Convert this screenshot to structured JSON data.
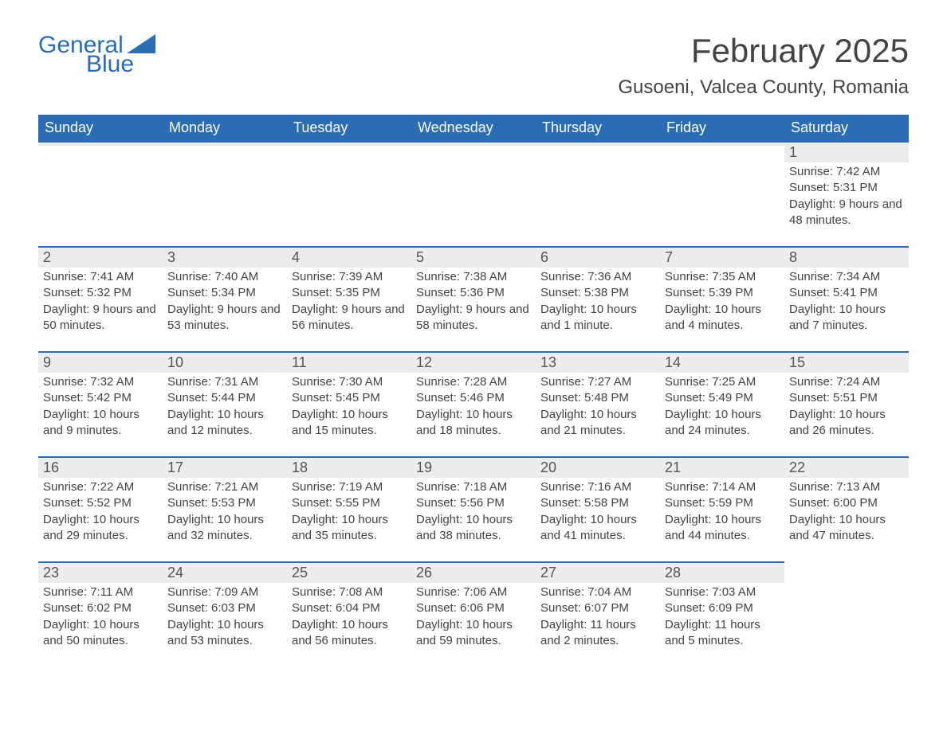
{
  "branding": {
    "logo_general": "General",
    "logo_blue": "Blue",
    "logo_triangle_color": "#2a6db5",
    "logo_text_color": "#2a6db5"
  },
  "header": {
    "month_title": "February 2025",
    "location": "Gusoeni, Valcea County, Romania"
  },
  "styles": {
    "header_bg": "#2a6db5",
    "header_text_color": "#ffffff",
    "day_row_bg": "#ececec",
    "day_row_border_top": "#2a6db5",
    "body_text_color": "#444444",
    "page_bg": "#ffffff",
    "month_title_fontsize": 42,
    "location_fontsize": 24,
    "weekday_fontsize": 18,
    "daynum_fontsize": 18,
    "content_fontsize": 15
  },
  "weekdays": [
    "Sunday",
    "Monday",
    "Tuesday",
    "Wednesday",
    "Thursday",
    "Friday",
    "Saturday"
  ],
  "weeks": [
    [
      {
        "day": "",
        "sunrise": "",
        "sunset": "",
        "daylight": ""
      },
      {
        "day": "",
        "sunrise": "",
        "sunset": "",
        "daylight": ""
      },
      {
        "day": "",
        "sunrise": "",
        "sunset": "",
        "daylight": ""
      },
      {
        "day": "",
        "sunrise": "",
        "sunset": "",
        "daylight": ""
      },
      {
        "day": "",
        "sunrise": "",
        "sunset": "",
        "daylight": ""
      },
      {
        "day": "",
        "sunrise": "",
        "sunset": "",
        "daylight": ""
      },
      {
        "day": "1",
        "sunrise": "Sunrise: 7:42 AM",
        "sunset": "Sunset: 5:31 PM",
        "daylight": "Daylight: 9 hours and 48 minutes."
      }
    ],
    [
      {
        "day": "2",
        "sunrise": "Sunrise: 7:41 AM",
        "sunset": "Sunset: 5:32 PM",
        "daylight": "Daylight: 9 hours and 50 minutes."
      },
      {
        "day": "3",
        "sunrise": "Sunrise: 7:40 AM",
        "sunset": "Sunset: 5:34 PM",
        "daylight": "Daylight: 9 hours and 53 minutes."
      },
      {
        "day": "4",
        "sunrise": "Sunrise: 7:39 AM",
        "sunset": "Sunset: 5:35 PM",
        "daylight": "Daylight: 9 hours and 56 minutes."
      },
      {
        "day": "5",
        "sunrise": "Sunrise: 7:38 AM",
        "sunset": "Sunset: 5:36 PM",
        "daylight": "Daylight: 9 hours and 58 minutes."
      },
      {
        "day": "6",
        "sunrise": "Sunrise: 7:36 AM",
        "sunset": "Sunset: 5:38 PM",
        "daylight": "Daylight: 10 hours and 1 minute."
      },
      {
        "day": "7",
        "sunrise": "Sunrise: 7:35 AM",
        "sunset": "Sunset: 5:39 PM",
        "daylight": "Daylight: 10 hours and 4 minutes."
      },
      {
        "day": "8",
        "sunrise": "Sunrise: 7:34 AM",
        "sunset": "Sunset: 5:41 PM",
        "daylight": "Daylight: 10 hours and 7 minutes."
      }
    ],
    [
      {
        "day": "9",
        "sunrise": "Sunrise: 7:32 AM",
        "sunset": "Sunset: 5:42 PM",
        "daylight": "Daylight: 10 hours and 9 minutes."
      },
      {
        "day": "10",
        "sunrise": "Sunrise: 7:31 AM",
        "sunset": "Sunset: 5:44 PM",
        "daylight": "Daylight: 10 hours and 12 minutes."
      },
      {
        "day": "11",
        "sunrise": "Sunrise: 7:30 AM",
        "sunset": "Sunset: 5:45 PM",
        "daylight": "Daylight: 10 hours and 15 minutes."
      },
      {
        "day": "12",
        "sunrise": "Sunrise: 7:28 AM",
        "sunset": "Sunset: 5:46 PM",
        "daylight": "Daylight: 10 hours and 18 minutes."
      },
      {
        "day": "13",
        "sunrise": "Sunrise: 7:27 AM",
        "sunset": "Sunset: 5:48 PM",
        "daylight": "Daylight: 10 hours and 21 minutes."
      },
      {
        "day": "14",
        "sunrise": "Sunrise: 7:25 AM",
        "sunset": "Sunset: 5:49 PM",
        "daylight": "Daylight: 10 hours and 24 minutes."
      },
      {
        "day": "15",
        "sunrise": "Sunrise: 7:24 AM",
        "sunset": "Sunset: 5:51 PM",
        "daylight": "Daylight: 10 hours and 26 minutes."
      }
    ],
    [
      {
        "day": "16",
        "sunrise": "Sunrise: 7:22 AM",
        "sunset": "Sunset: 5:52 PM",
        "daylight": "Daylight: 10 hours and 29 minutes."
      },
      {
        "day": "17",
        "sunrise": "Sunrise: 7:21 AM",
        "sunset": "Sunset: 5:53 PM",
        "daylight": "Daylight: 10 hours and 32 minutes."
      },
      {
        "day": "18",
        "sunrise": "Sunrise: 7:19 AM",
        "sunset": "Sunset: 5:55 PM",
        "daylight": "Daylight: 10 hours and 35 minutes."
      },
      {
        "day": "19",
        "sunrise": "Sunrise: 7:18 AM",
        "sunset": "Sunset: 5:56 PM",
        "daylight": "Daylight: 10 hours and 38 minutes."
      },
      {
        "day": "20",
        "sunrise": "Sunrise: 7:16 AM",
        "sunset": "Sunset: 5:58 PM",
        "daylight": "Daylight: 10 hours and 41 minutes."
      },
      {
        "day": "21",
        "sunrise": "Sunrise: 7:14 AM",
        "sunset": "Sunset: 5:59 PM",
        "daylight": "Daylight: 10 hours and 44 minutes."
      },
      {
        "day": "22",
        "sunrise": "Sunrise: 7:13 AM",
        "sunset": "Sunset: 6:00 PM",
        "daylight": "Daylight: 10 hours and 47 minutes."
      }
    ],
    [
      {
        "day": "23",
        "sunrise": "Sunrise: 7:11 AM",
        "sunset": "Sunset: 6:02 PM",
        "daylight": "Daylight: 10 hours and 50 minutes."
      },
      {
        "day": "24",
        "sunrise": "Sunrise: 7:09 AM",
        "sunset": "Sunset: 6:03 PM",
        "daylight": "Daylight: 10 hours and 53 minutes."
      },
      {
        "day": "25",
        "sunrise": "Sunrise: 7:08 AM",
        "sunset": "Sunset: 6:04 PM",
        "daylight": "Daylight: 10 hours and 56 minutes."
      },
      {
        "day": "26",
        "sunrise": "Sunrise: 7:06 AM",
        "sunset": "Sunset: 6:06 PM",
        "daylight": "Daylight: 10 hours and 59 minutes."
      },
      {
        "day": "27",
        "sunrise": "Sunrise: 7:04 AM",
        "sunset": "Sunset: 6:07 PM",
        "daylight": "Daylight: 11 hours and 2 minutes."
      },
      {
        "day": "28",
        "sunrise": "Sunrise: 7:03 AM",
        "sunset": "Sunset: 6:09 PM",
        "daylight": "Daylight: 11 hours and 5 minutes."
      },
      {
        "day": "",
        "sunrise": "",
        "sunset": "",
        "daylight": ""
      }
    ]
  ]
}
